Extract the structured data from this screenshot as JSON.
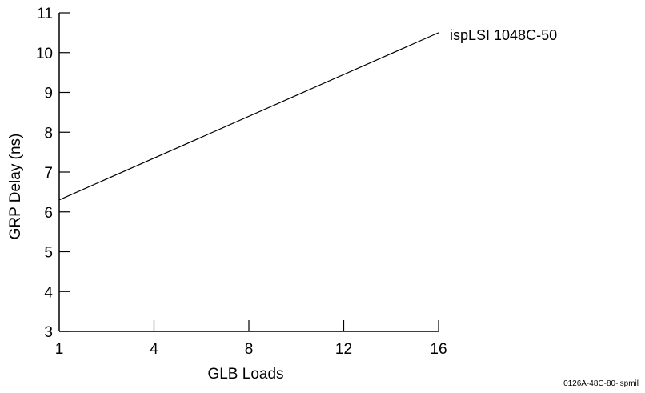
{
  "chart_data": {
    "type": "line",
    "xlabel": "GLB Loads",
    "ylabel": "GRP Delay (ns)",
    "xlim": [
      0,
      16
    ],
    "ylim": [
      3,
      11
    ],
    "x_ticks": [
      1,
      4,
      8,
      12,
      16
    ],
    "y_ticks": [
      3,
      4,
      5,
      6,
      7,
      8,
      9,
      10,
      11
    ],
    "series": [
      {
        "name": "ispLSI 1048C-50",
        "x": [
          0,
          16
        ],
        "y": [
          6.3,
          10.5
        ]
      }
    ]
  },
  "footnote": "0126A-48C-80-ispmil"
}
